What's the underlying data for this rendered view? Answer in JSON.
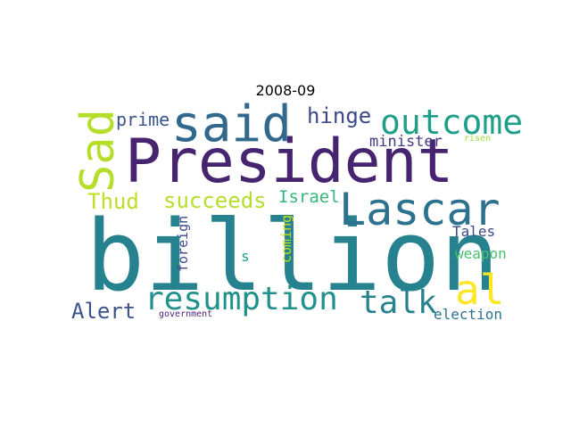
{
  "title": "2008-09",
  "words": {
    "billion": {
      "text": "billion",
      "color": "#26828e"
    },
    "president": {
      "text": "President",
      "color": "#46246f"
    },
    "sad": {
      "text": "Sad",
      "color": "#b5de2b"
    },
    "said": {
      "text": "said",
      "color": "#31688e"
    },
    "lascar": {
      "text": "Lascar",
      "color": "#2c728e"
    },
    "outcome": {
      "text": "outcome",
      "color": "#1f9e89"
    },
    "hinge": {
      "text": "hinge",
      "color": "#3e4989"
    },
    "prime": {
      "text": "prime",
      "color": "#3b528b"
    },
    "minister": {
      "text": "minister",
      "color": "#443983"
    },
    "risen": {
      "text": "risen",
      "color": "#a0da39"
    },
    "thud": {
      "text": "Thud",
      "color": "#bddf26"
    },
    "succeeds": {
      "text": "succeeds",
      "color": "#b5de2b"
    },
    "israel": {
      "text": "Israel",
      "color": "#35b779"
    },
    "foreign": {
      "text": "foreign",
      "color": "#3e4989"
    },
    "coming": {
      "text": "coming",
      "color": "#c2df23"
    },
    "tales": {
      "text": "Tales",
      "color": "#3e4989"
    },
    "s": {
      "text": "s",
      "color": "#1f9e89"
    },
    "weapon": {
      "text": "weapon",
      "color": "#4ac16d"
    },
    "al": {
      "text": "al",
      "color": "#fde725"
    },
    "resumption": {
      "text": "resumption",
      "color": "#21918c"
    },
    "talk": {
      "text": "talk",
      "color": "#26828e"
    },
    "alert": {
      "text": "Alert",
      "color": "#3b528b"
    },
    "government": {
      "text": "government",
      "color": "#482475"
    },
    "election": {
      "text": "election",
      "color": "#2c728e"
    }
  }
}
